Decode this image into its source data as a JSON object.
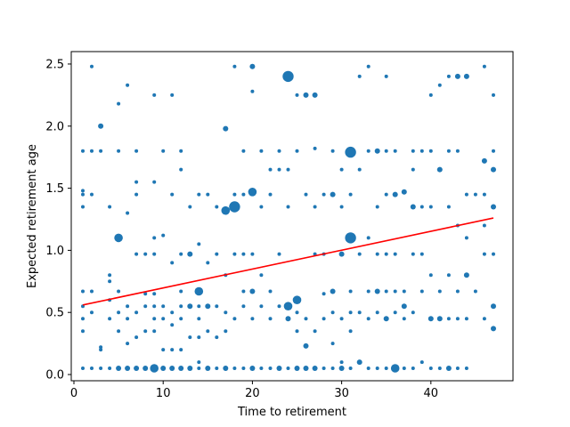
{
  "chart_data": {
    "type": "scatter",
    "title": "",
    "xlabel": "Time to retirement",
    "ylabel": "Expected retirement age",
    "xlim": [
      -0.3,
      49.2
    ],
    "ylim": [
      -0.05,
      2.6
    ],
    "xticks": [
      0,
      10,
      20,
      30,
      40
    ],
    "xtick_labels": [
      "0",
      "10",
      "20",
      "30",
      "40"
    ],
    "yticks": [
      0.0,
      0.5,
      1.0,
      1.5,
      2.0,
      2.5
    ],
    "ytick_labels": [
      "0.0",
      "0.5",
      "1.0",
      "1.5",
      "2.0",
      "2.5"
    ],
    "grid": false,
    "marker_color": "#1f77b4",
    "line_color": "#ff0000",
    "points": [
      {
        "x": 1,
        "y": 0.05,
        "s": 1
      },
      {
        "x": 1,
        "y": 0.35,
        "s": 1
      },
      {
        "x": 1,
        "y": 0.45,
        "s": 1
      },
      {
        "x": 1,
        "y": 0.55,
        "s": 1
      },
      {
        "x": 1,
        "y": 0.67,
        "s": 1
      },
      {
        "x": 1,
        "y": 1.35,
        "s": 1
      },
      {
        "x": 1,
        "y": 1.45,
        "s": 1
      },
      {
        "x": 1,
        "y": 1.48,
        "s": 1
      },
      {
        "x": 1,
        "y": 1.8,
        "s": 1
      },
      {
        "x": 2,
        "y": 0.05,
        "s": 1
      },
      {
        "x": 2,
        "y": 0.5,
        "s": 1
      },
      {
        "x": 2,
        "y": 0.67,
        "s": 1
      },
      {
        "x": 2,
        "y": 1.45,
        "s": 1
      },
      {
        "x": 2,
        "y": 1.8,
        "s": 1
      },
      {
        "x": 2,
        "y": 2.48,
        "s": 1
      },
      {
        "x": 3,
        "y": 0.05,
        "s": 1
      },
      {
        "x": 3,
        "y": 0.2,
        "s": 1
      },
      {
        "x": 3,
        "y": 0.22,
        "s": 1
      },
      {
        "x": 3,
        "y": 1.8,
        "s": 1
      },
      {
        "x": 3,
        "y": 2.0,
        "s": 2
      },
      {
        "x": 4,
        "y": 0.05,
        "s": 1
      },
      {
        "x": 4,
        "y": 0.45,
        "s": 1
      },
      {
        "x": 4,
        "y": 0.6,
        "s": 1
      },
      {
        "x": 4,
        "y": 0.75,
        "s": 1
      },
      {
        "x": 4,
        "y": 0.8,
        "s": 1
      },
      {
        "x": 4,
        "y": 1.35,
        "s": 1
      },
      {
        "x": 5,
        "y": 0.05,
        "s": 2
      },
      {
        "x": 5,
        "y": 0.35,
        "s": 1
      },
      {
        "x": 5,
        "y": 0.5,
        "s": 1
      },
      {
        "x": 5,
        "y": 0.67,
        "s": 1
      },
      {
        "x": 5,
        "y": 1.1,
        "s": 3
      },
      {
        "x": 5,
        "y": 1.8,
        "s": 1
      },
      {
        "x": 5,
        "y": 2.18,
        "s": 1
      },
      {
        "x": 6,
        "y": 0.05,
        "s": 2
      },
      {
        "x": 6,
        "y": 0.25,
        "s": 1
      },
      {
        "x": 6,
        "y": 0.45,
        "s": 1
      },
      {
        "x": 6,
        "y": 0.55,
        "s": 1
      },
      {
        "x": 6,
        "y": 1.3,
        "s": 1
      },
      {
        "x": 6,
        "y": 2.33,
        "s": 1
      },
      {
        "x": 7,
        "y": 0.05,
        "s": 2
      },
      {
        "x": 7,
        "y": 0.3,
        "s": 1
      },
      {
        "x": 7,
        "y": 0.5,
        "s": 1
      },
      {
        "x": 7,
        "y": 0.97,
        "s": 1
      },
      {
        "x": 7,
        "y": 1.45,
        "s": 1
      },
      {
        "x": 7,
        "y": 1.55,
        "s": 1
      },
      {
        "x": 7,
        "y": 1.8,
        "s": 1
      },
      {
        "x": 8,
        "y": 0.05,
        "s": 2
      },
      {
        "x": 8,
        "y": 0.35,
        "s": 1
      },
      {
        "x": 8,
        "y": 0.55,
        "s": 1
      },
      {
        "x": 8,
        "y": 0.65,
        "s": 1
      },
      {
        "x": 8,
        "y": 0.97,
        "s": 1
      },
      {
        "x": 9,
        "y": 0.05,
        "s": 3
      },
      {
        "x": 9,
        "y": 0.35,
        "s": 1
      },
      {
        "x": 9,
        "y": 0.45,
        "s": 1
      },
      {
        "x": 9,
        "y": 0.55,
        "s": 1
      },
      {
        "x": 9,
        "y": 0.65,
        "s": 1
      },
      {
        "x": 9,
        "y": 0.97,
        "s": 1
      },
      {
        "x": 9,
        "y": 1.1,
        "s": 1
      },
      {
        "x": 9,
        "y": 1.55,
        "s": 1
      },
      {
        "x": 9,
        "y": 2.25,
        "s": 1
      },
      {
        "x": 10,
        "y": 0.05,
        "s": 2
      },
      {
        "x": 10,
        "y": 0.2,
        "s": 1
      },
      {
        "x": 10,
        "y": 0.45,
        "s": 1
      },
      {
        "x": 10,
        "y": 0.55,
        "s": 1
      },
      {
        "x": 10,
        "y": 1.12,
        "s": 1
      },
      {
        "x": 10,
        "y": 1.8,
        "s": 1
      },
      {
        "x": 11,
        "y": 0.05,
        "s": 2
      },
      {
        "x": 11,
        "y": 0.2,
        "s": 1
      },
      {
        "x": 11,
        "y": 0.4,
        "s": 1
      },
      {
        "x": 11,
        "y": 0.5,
        "s": 1
      },
      {
        "x": 11,
        "y": 0.9,
        "s": 1
      },
      {
        "x": 11,
        "y": 1.45,
        "s": 1
      },
      {
        "x": 11,
        "y": 2.25,
        "s": 1
      },
      {
        "x": 12,
        "y": 0.05,
        "s": 2
      },
      {
        "x": 12,
        "y": 0.2,
        "s": 1
      },
      {
        "x": 12,
        "y": 0.45,
        "s": 1
      },
      {
        "x": 12,
        "y": 0.55,
        "s": 1
      },
      {
        "x": 12,
        "y": 0.67,
        "s": 1
      },
      {
        "x": 12,
        "y": 0.97,
        "s": 1
      },
      {
        "x": 12,
        "y": 1.65,
        "s": 1
      },
      {
        "x": 12,
        "y": 1.8,
        "s": 1
      },
      {
        "x": 13,
        "y": 0.05,
        "s": 2
      },
      {
        "x": 13,
        "y": 0.3,
        "s": 1
      },
      {
        "x": 13,
        "y": 0.55,
        "s": 2
      },
      {
        "x": 13,
        "y": 0.97,
        "s": 2
      },
      {
        "x": 13,
        "y": 1.35,
        "s": 1
      },
      {
        "x": 14,
        "y": 0.05,
        "s": 1
      },
      {
        "x": 14,
        "y": 0.1,
        "s": 1
      },
      {
        "x": 14,
        "y": 0.3,
        "s": 1
      },
      {
        "x": 14,
        "y": 0.45,
        "s": 1
      },
      {
        "x": 14,
        "y": 0.55,
        "s": 1
      },
      {
        "x": 14,
        "y": 0.67,
        "s": 3
      },
      {
        "x": 14,
        "y": 1.05,
        "s": 1
      },
      {
        "x": 14,
        "y": 1.45,
        "s": 1
      },
      {
        "x": 15,
        "y": 0.05,
        "s": 2
      },
      {
        "x": 15,
        "y": 0.35,
        "s": 1
      },
      {
        "x": 15,
        "y": 0.55,
        "s": 2
      },
      {
        "x": 15,
        "y": 0.9,
        "s": 1
      },
      {
        "x": 15,
        "y": 1.45,
        "s": 1
      },
      {
        "x": 16,
        "y": 0.05,
        "s": 1
      },
      {
        "x": 16,
        "y": 0.3,
        "s": 1
      },
      {
        "x": 16,
        "y": 0.55,
        "s": 1
      },
      {
        "x": 16,
        "y": 0.97,
        "s": 1
      },
      {
        "x": 16,
        "y": 1.35,
        "s": 1
      },
      {
        "x": 17,
        "y": 0.05,
        "s": 2
      },
      {
        "x": 17,
        "y": 0.35,
        "s": 1
      },
      {
        "x": 17,
        "y": 0.5,
        "s": 1
      },
      {
        "x": 17,
        "y": 0.8,
        "s": 1
      },
      {
        "x": 17,
        "y": 1.32,
        "s": 3
      },
      {
        "x": 17,
        "y": 1.98,
        "s": 2
      },
      {
        "x": 18,
        "y": 0.05,
        "s": 1
      },
      {
        "x": 18,
        "y": 0.45,
        "s": 1
      },
      {
        "x": 18,
        "y": 0.97,
        "s": 1
      },
      {
        "x": 18,
        "y": 1.35,
        "s": 4
      },
      {
        "x": 18,
        "y": 1.45,
        "s": 1
      },
      {
        "x": 18,
        "y": 2.48,
        "s": 1
      },
      {
        "x": 19,
        "y": 0.05,
        "s": 1
      },
      {
        "x": 19,
        "y": 0.55,
        "s": 1
      },
      {
        "x": 19,
        "y": 0.67,
        "s": 1
      },
      {
        "x": 19,
        "y": 0.97,
        "s": 1
      },
      {
        "x": 19,
        "y": 1.45,
        "s": 1
      },
      {
        "x": 19,
        "y": 1.8,
        "s": 1
      },
      {
        "x": 20,
        "y": 0.05,
        "s": 2
      },
      {
        "x": 20,
        "y": 0.45,
        "s": 1
      },
      {
        "x": 20,
        "y": 0.67,
        "s": 2
      },
      {
        "x": 20,
        "y": 0.97,
        "s": 1
      },
      {
        "x": 20,
        "y": 1.47,
        "s": 3
      },
      {
        "x": 20,
        "y": 2.28,
        "s": 1
      },
      {
        "x": 20,
        "y": 2.48,
        "s": 2
      },
      {
        "x": 21,
        "y": 0.05,
        "s": 1
      },
      {
        "x": 21,
        "y": 0.55,
        "s": 1
      },
      {
        "x": 21,
        "y": 0.8,
        "s": 1
      },
      {
        "x": 21,
        "y": 1.35,
        "s": 1
      },
      {
        "x": 21,
        "y": 1.8,
        "s": 1
      },
      {
        "x": 22,
        "y": 0.05,
        "s": 1
      },
      {
        "x": 22,
        "y": 0.45,
        "s": 1
      },
      {
        "x": 22,
        "y": 0.67,
        "s": 1
      },
      {
        "x": 22,
        "y": 1.45,
        "s": 1
      },
      {
        "x": 22,
        "y": 1.65,
        "s": 1
      },
      {
        "x": 23,
        "y": 0.05,
        "s": 2
      },
      {
        "x": 23,
        "y": 0.55,
        "s": 1
      },
      {
        "x": 23,
        "y": 0.97,
        "s": 1
      },
      {
        "x": 23,
        "y": 1.65,
        "s": 1
      },
      {
        "x": 23,
        "y": 1.8,
        "s": 1
      },
      {
        "x": 24,
        "y": 0.05,
        "s": 1
      },
      {
        "x": 24,
        "y": 0.45,
        "s": 2
      },
      {
        "x": 24,
        "y": 0.55,
        "s": 3
      },
      {
        "x": 24,
        "y": 1.35,
        "s": 1
      },
      {
        "x": 24,
        "y": 1.65,
        "s": 1
      },
      {
        "x": 24,
        "y": 2.4,
        "s": 4
      },
      {
        "x": 25,
        "y": 0.05,
        "s": 2
      },
      {
        "x": 25,
        "y": 0.35,
        "s": 1
      },
      {
        "x": 25,
        "y": 0.5,
        "s": 1
      },
      {
        "x": 25,
        "y": 0.6,
        "s": 3
      },
      {
        "x": 25,
        "y": 1.8,
        "s": 1
      },
      {
        "x": 25,
        "y": 2.25,
        "s": 1
      },
      {
        "x": 26,
        "y": 0.05,
        "s": 2
      },
      {
        "x": 26,
        "y": 0.23,
        "s": 2
      },
      {
        "x": 26,
        "y": 0.45,
        "s": 1
      },
      {
        "x": 26,
        "y": 1.45,
        "s": 1
      },
      {
        "x": 26,
        "y": 2.25,
        "s": 2
      },
      {
        "x": 27,
        "y": 0.05,
        "s": 2
      },
      {
        "x": 27,
        "y": 0.35,
        "s": 1
      },
      {
        "x": 27,
        "y": 0.97,
        "s": 1
      },
      {
        "x": 27,
        "y": 1.35,
        "s": 1
      },
      {
        "x": 27,
        "y": 1.82,
        "s": 1
      },
      {
        "x": 27,
        "y": 2.25,
        "s": 2
      },
      {
        "x": 28,
        "y": 0.05,
        "s": 1
      },
      {
        "x": 28,
        "y": 0.45,
        "s": 1
      },
      {
        "x": 28,
        "y": 0.65,
        "s": 1
      },
      {
        "x": 28,
        "y": 0.97,
        "s": 1
      },
      {
        "x": 28,
        "y": 1.45,
        "s": 1
      },
      {
        "x": 29,
        "y": 0.05,
        "s": 1
      },
      {
        "x": 29,
        "y": 0.25,
        "s": 1
      },
      {
        "x": 29,
        "y": 0.5,
        "s": 1
      },
      {
        "x": 29,
        "y": 0.67,
        "s": 2
      },
      {
        "x": 29,
        "y": 1.45,
        "s": 2
      },
      {
        "x": 29,
        "y": 1.8,
        "s": 1
      },
      {
        "x": 30,
        "y": 0.05,
        "s": 2
      },
      {
        "x": 30,
        "y": 0.1,
        "s": 1
      },
      {
        "x": 30,
        "y": 0.45,
        "s": 1
      },
      {
        "x": 30,
        "y": 0.97,
        "s": 2
      },
      {
        "x": 30,
        "y": 1.35,
        "s": 1
      },
      {
        "x": 30,
        "y": 1.65,
        "s": 1
      },
      {
        "x": 31,
        "y": 0.05,
        "s": 1
      },
      {
        "x": 31,
        "y": 0.35,
        "s": 1
      },
      {
        "x": 31,
        "y": 0.5,
        "s": 1
      },
      {
        "x": 31,
        "y": 0.67,
        "s": 1
      },
      {
        "x": 31,
        "y": 1.1,
        "s": 4
      },
      {
        "x": 31,
        "y": 1.45,
        "s": 1
      },
      {
        "x": 31,
        "y": 1.79,
        "s": 4
      },
      {
        "x": 32,
        "y": 0.1,
        "s": 2
      },
      {
        "x": 32,
        "y": 0.5,
        "s": 1
      },
      {
        "x": 32,
        "y": 0.97,
        "s": 1
      },
      {
        "x": 32,
        "y": 1.65,
        "s": 1
      },
      {
        "x": 32,
        "y": 2.4,
        "s": 1
      },
      {
        "x": 33,
        "y": 0.05,
        "s": 1
      },
      {
        "x": 33,
        "y": 0.45,
        "s": 1
      },
      {
        "x": 33,
        "y": 0.67,
        "s": 1
      },
      {
        "x": 33,
        "y": 1.1,
        "s": 1
      },
      {
        "x": 33,
        "y": 1.8,
        "s": 1
      },
      {
        "x": 33,
        "y": 2.48,
        "s": 1
      },
      {
        "x": 34,
        "y": 0.05,
        "s": 1
      },
      {
        "x": 34,
        "y": 0.5,
        "s": 1
      },
      {
        "x": 34,
        "y": 0.67,
        "s": 2
      },
      {
        "x": 34,
        "y": 0.97,
        "s": 1
      },
      {
        "x": 34,
        "y": 1.35,
        "s": 1
      },
      {
        "x": 34,
        "y": 1.8,
        "s": 2
      },
      {
        "x": 35,
        "y": 0.05,
        "s": 1
      },
      {
        "x": 35,
        "y": 0.45,
        "s": 2
      },
      {
        "x": 35,
        "y": 0.67,
        "s": 1
      },
      {
        "x": 35,
        "y": 0.97,
        "s": 1
      },
      {
        "x": 35,
        "y": 1.45,
        "s": 1
      },
      {
        "x": 35,
        "y": 1.8,
        "s": 1
      },
      {
        "x": 35,
        "y": 2.4,
        "s": 1
      },
      {
        "x": 36,
        "y": 0.05,
        "s": 3
      },
      {
        "x": 36,
        "y": 0.5,
        "s": 1
      },
      {
        "x": 36,
        "y": 0.67,
        "s": 1
      },
      {
        "x": 36,
        "y": 0.97,
        "s": 1
      },
      {
        "x": 36,
        "y": 1.45,
        "s": 2
      },
      {
        "x": 36,
        "y": 1.8,
        "s": 1
      },
      {
        "x": 37,
        "y": 0.05,
        "s": 1
      },
      {
        "x": 37,
        "y": 0.45,
        "s": 1
      },
      {
        "x": 37,
        "y": 0.55,
        "s": 2
      },
      {
        "x": 37,
        "y": 0.67,
        "s": 1
      },
      {
        "x": 37,
        "y": 1.47,
        "s": 2
      },
      {
        "x": 38,
        "y": 0.05,
        "s": 1
      },
      {
        "x": 38,
        "y": 0.5,
        "s": 1
      },
      {
        "x": 38,
        "y": 0.97,
        "s": 1
      },
      {
        "x": 38,
        "y": 1.35,
        "s": 2
      },
      {
        "x": 38,
        "y": 1.65,
        "s": 1
      },
      {
        "x": 38,
        "y": 1.8,
        "s": 1
      },
      {
        "x": 39,
        "y": 0.1,
        "s": 1
      },
      {
        "x": 39,
        "y": 0.67,
        "s": 1
      },
      {
        "x": 39,
        "y": 0.97,
        "s": 1
      },
      {
        "x": 39,
        "y": 1.35,
        "s": 1
      },
      {
        "x": 39,
        "y": 1.8,
        "s": 1
      },
      {
        "x": 40,
        "y": 0.05,
        "s": 1
      },
      {
        "x": 40,
        "y": 0.45,
        "s": 2
      },
      {
        "x": 40,
        "y": 0.8,
        "s": 1
      },
      {
        "x": 40,
        "y": 1.35,
        "s": 1
      },
      {
        "x": 40,
        "y": 1.8,
        "s": 1
      },
      {
        "x": 40,
        "y": 2.25,
        "s": 1
      },
      {
        "x": 41,
        "y": 0.05,
        "s": 1
      },
      {
        "x": 41,
        "y": 0.45,
        "s": 2
      },
      {
        "x": 41,
        "y": 0.67,
        "s": 1
      },
      {
        "x": 41,
        "y": 1.65,
        "s": 2
      },
      {
        "x": 41,
        "y": 2.33,
        "s": 1
      },
      {
        "x": 42,
        "y": 0.05,
        "s": 2
      },
      {
        "x": 42,
        "y": 0.45,
        "s": 1
      },
      {
        "x": 42,
        "y": 0.8,
        "s": 1
      },
      {
        "x": 42,
        "y": 1.35,
        "s": 1
      },
      {
        "x": 42,
        "y": 1.8,
        "s": 1
      },
      {
        "x": 42,
        "y": 2.4,
        "s": 1
      },
      {
        "x": 43,
        "y": 0.05,
        "s": 1
      },
      {
        "x": 43,
        "y": 0.45,
        "s": 1
      },
      {
        "x": 43,
        "y": 0.67,
        "s": 1
      },
      {
        "x": 43,
        "y": 1.2,
        "s": 1
      },
      {
        "x": 43,
        "y": 1.8,
        "s": 1
      },
      {
        "x": 43,
        "y": 2.4,
        "s": 2
      },
      {
        "x": 44,
        "y": 0.05,
        "s": 1
      },
      {
        "x": 44,
        "y": 0.45,
        "s": 1
      },
      {
        "x": 44,
        "y": 0.8,
        "s": 2
      },
      {
        "x": 44,
        "y": 1.1,
        "s": 1
      },
      {
        "x": 44,
        "y": 1.45,
        "s": 1
      },
      {
        "x": 44,
        "y": 2.4,
        "s": 2
      },
      {
        "x": 45,
        "y": 0.67,
        "s": 1
      },
      {
        "x": 45,
        "y": 1.45,
        "s": 1
      },
      {
        "x": 46,
        "y": 0.45,
        "s": 1
      },
      {
        "x": 46,
        "y": 0.97,
        "s": 1
      },
      {
        "x": 46,
        "y": 1.2,
        "s": 1
      },
      {
        "x": 46,
        "y": 1.45,
        "s": 1
      },
      {
        "x": 46,
        "y": 1.72,
        "s": 2
      },
      {
        "x": 46,
        "y": 2.48,
        "s": 1
      },
      {
        "x": 47,
        "y": 0.37,
        "s": 2
      },
      {
        "x": 47,
        "y": 0.55,
        "s": 2
      },
      {
        "x": 47,
        "y": 0.97,
        "s": 1
      },
      {
        "x": 47,
        "y": 1.35,
        "s": 2
      },
      {
        "x": 47,
        "y": 1.65,
        "s": 2
      },
      {
        "x": 47,
        "y": 1.8,
        "s": 1
      },
      {
        "x": 47,
        "y": 2.25,
        "s": 1
      }
    ],
    "trend_line": {
      "x": [
        1,
        47
      ],
      "y": [
        0.56,
        1.26
      ]
    }
  }
}
